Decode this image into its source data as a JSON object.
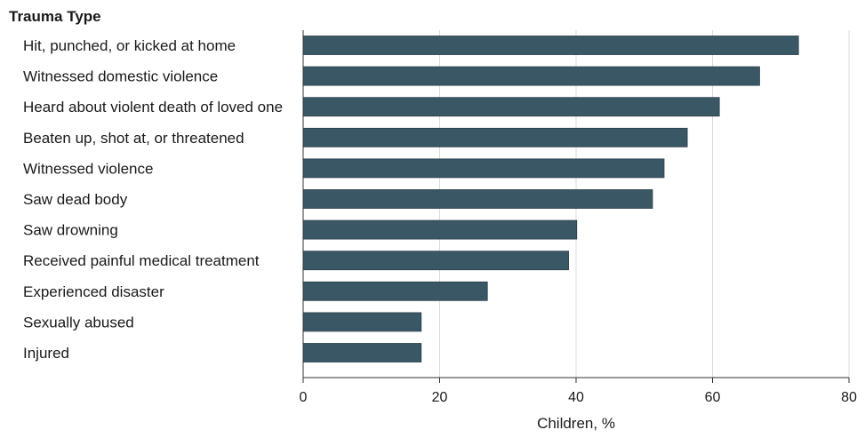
{
  "chart_data": {
    "type": "bar",
    "orientation": "horizontal",
    "category_axis_title": "Trauma Type",
    "xlabel": "Children, %",
    "xlim": [
      0,
      80
    ],
    "xticks": [
      0,
      20,
      40,
      60,
      80
    ],
    "grid": true,
    "bar_color": "#3a5766",
    "categories": [
      "Hit, punched, or kicked at home",
      "Witnessed domestic violence",
      "Heard about violent death of loved one",
      "Beaten up, shot at, or threatened",
      "Witnessed violence",
      "Saw dead body",
      "Saw drowning",
      "Received painful medical treatment",
      "Experienced disaster",
      "Sexually abused",
      "Injured"
    ],
    "values": [
      72.6,
      66.9,
      61.0,
      56.3,
      52.9,
      51.2,
      40.1,
      38.9,
      27.0,
      17.3,
      17.3
    ]
  }
}
